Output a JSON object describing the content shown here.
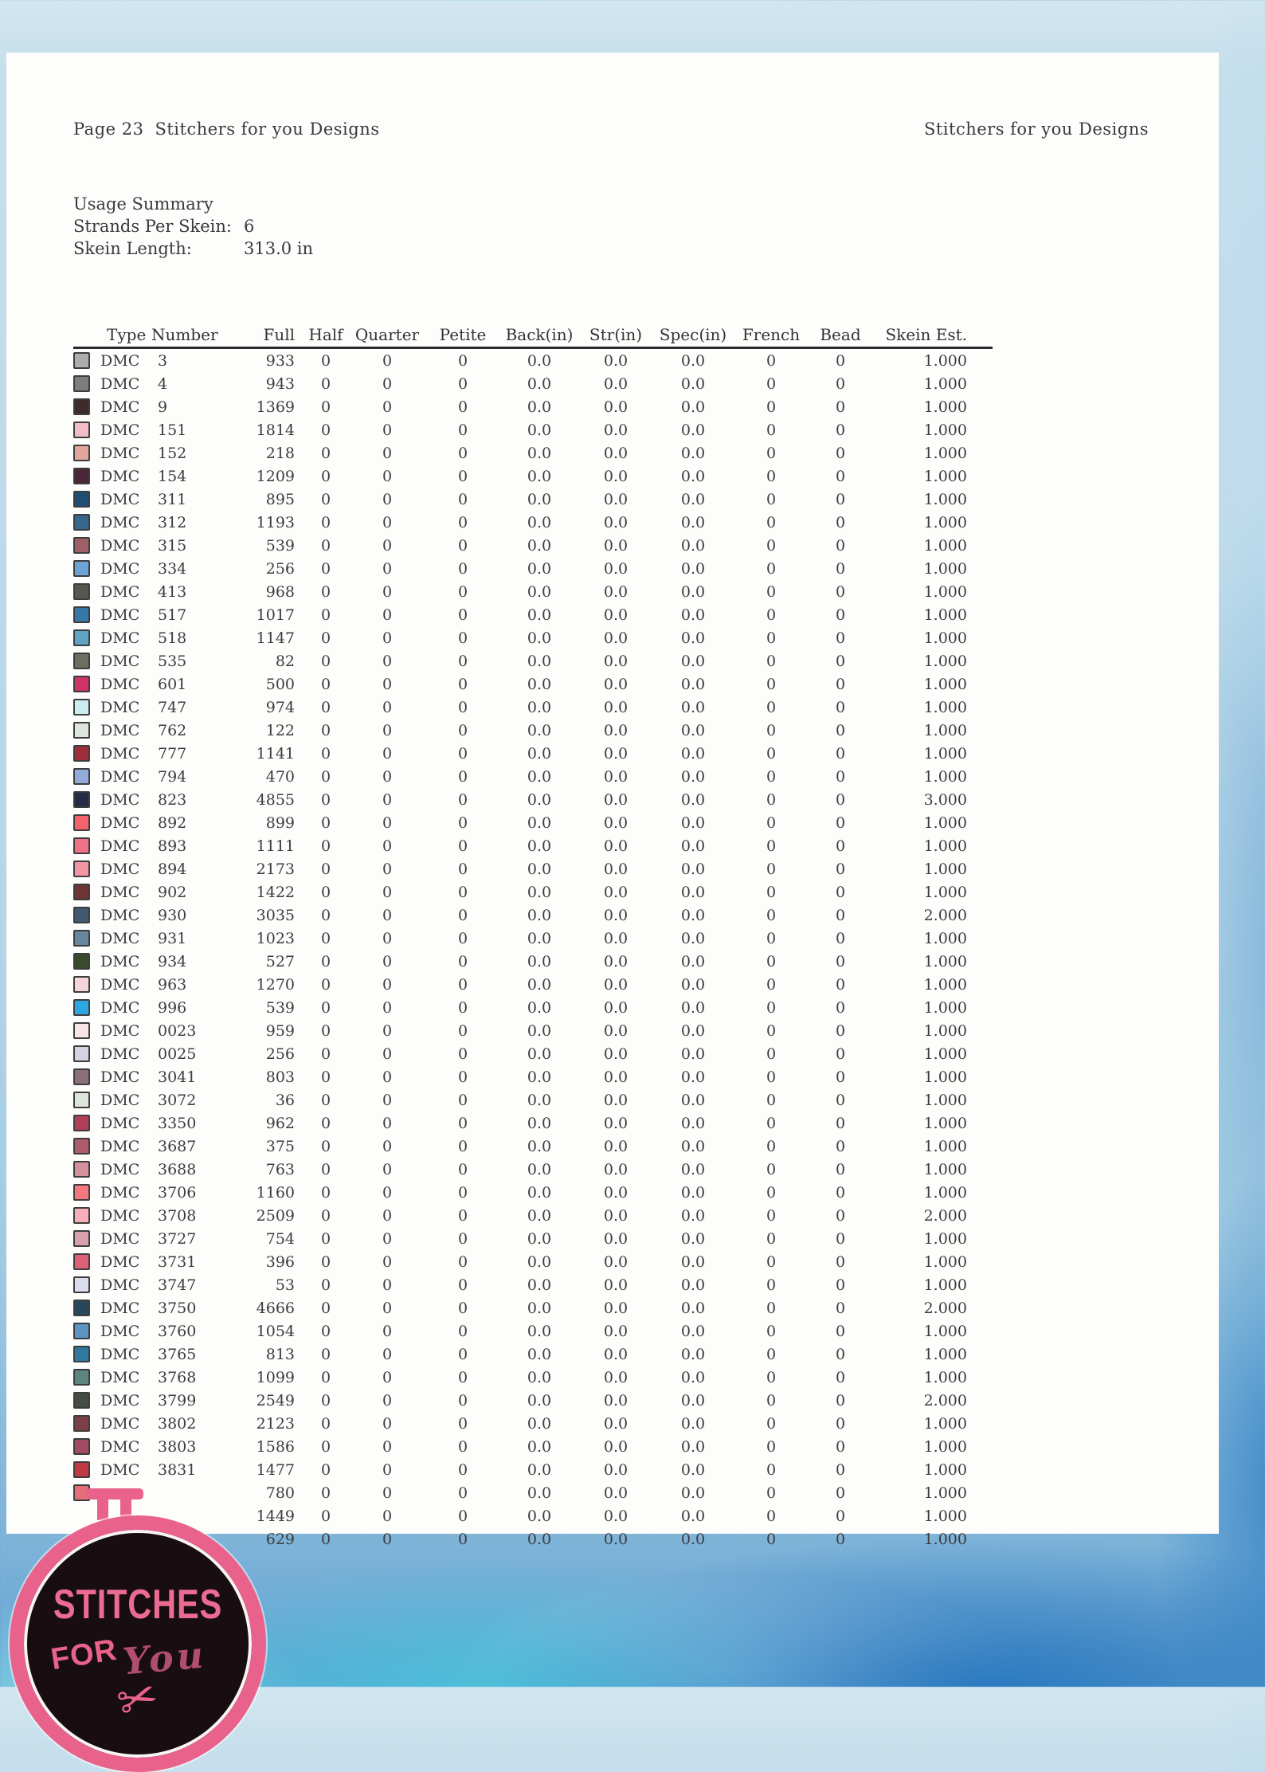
{
  "header": {
    "page_label": "Page 23",
    "doc_title": "Stitchers for you Designs",
    "right_title": "Stitchers for you Designs"
  },
  "summary": {
    "title": "Usage Summary",
    "strands_label": "Strands Per Skein:",
    "strands_value": "6",
    "length_label": "Skein Length:",
    "length_value": "313.0 in"
  },
  "table": {
    "columns": [
      "Type",
      "Number",
      "Full",
      "Half",
      "Quarter",
      "Petite",
      "Back(in)",
      "Str(in)",
      "Spec(in)",
      "French",
      "Bead",
      "Skein Est."
    ],
    "rows": [
      [
        "#ADADAD",
        "DMC",
        "3",
        "933",
        "0",
        "0",
        "0",
        "0.0",
        "0.0",
        "0.0",
        "0",
        "0",
        "1.000"
      ],
      [
        "#7E7E7E",
        "DMC",
        "4",
        "943",
        "0",
        "0",
        "0",
        "0.0",
        "0.0",
        "0.0",
        "0",
        "0",
        "1.000"
      ],
      [
        "#3C2B29",
        "DMC",
        "9",
        "1369",
        "0",
        "0",
        "0",
        "0.0",
        "0.0",
        "0.0",
        "0",
        "0",
        "1.000"
      ],
      [
        "#F3BDC8",
        "DMC",
        "151",
        "1814",
        "0",
        "0",
        "0",
        "0.0",
        "0.0",
        "0.0",
        "0",
        "0",
        "1.000"
      ],
      [
        "#E2A79C",
        "DMC",
        "152",
        "218",
        "0",
        "0",
        "0",
        "0.0",
        "0.0",
        "0.0",
        "0",
        "0",
        "1.000"
      ],
      [
        "#4B2639",
        "DMC",
        "154",
        "1209",
        "0",
        "0",
        "0",
        "0.0",
        "0.0",
        "0.0",
        "0",
        "0",
        "1.000"
      ],
      [
        "#1F4E74",
        "DMC",
        "311",
        "895",
        "0",
        "0",
        "0",
        "0.0",
        "0.0",
        "0.0",
        "0",
        "0",
        "1.000"
      ],
      [
        "#35678F",
        "DMC",
        "312",
        "1193",
        "0",
        "0",
        "0",
        "0.0",
        "0.0",
        "0.0",
        "0",
        "0",
        "1.000"
      ],
      [
        "#9E5F66",
        "DMC",
        "315",
        "539",
        "0",
        "0",
        "0",
        "0.0",
        "0.0",
        "0.0",
        "0",
        "0",
        "1.000"
      ],
      [
        "#6BA4D4",
        "DMC",
        "334",
        "256",
        "0",
        "0",
        "0",
        "0.0",
        "0.0",
        "0.0",
        "0",
        "0",
        "1.000"
      ],
      [
        "#55584F",
        "DMC",
        "413",
        "968",
        "0",
        "0",
        "0",
        "0.0",
        "0.0",
        "0.0",
        "0",
        "0",
        "1.000"
      ],
      [
        "#3679A8",
        "DMC",
        "517",
        "1017",
        "0",
        "0",
        "0",
        "0.0",
        "0.0",
        "0.0",
        "0",
        "0",
        "1.000"
      ],
      [
        "#5FA4C2",
        "DMC",
        "518",
        "1147",
        "0",
        "0",
        "0",
        "0.0",
        "0.0",
        "0.0",
        "0",
        "0",
        "1.000"
      ],
      [
        "#6A6F60",
        "DMC",
        "535",
        "82",
        "0",
        "0",
        "0",
        "0.0",
        "0.0",
        "0.0",
        "0",
        "0",
        "1.000"
      ],
      [
        "#CE3268",
        "DMC",
        "601",
        "500",
        "0",
        "0",
        "0",
        "0.0",
        "0.0",
        "0.0",
        "0",
        "0",
        "1.000"
      ],
      [
        "#CDECEF",
        "DMC",
        "747",
        "974",
        "0",
        "0",
        "0",
        "0.0",
        "0.0",
        "0.0",
        "0",
        "0",
        "1.000"
      ],
      [
        "#DCE5DE",
        "DMC",
        "762",
        "122",
        "0",
        "0",
        "0",
        "0.0",
        "0.0",
        "0.0",
        "0",
        "0",
        "1.000"
      ],
      [
        "#9D2F3D",
        "DMC",
        "777",
        "1141",
        "0",
        "0",
        "0",
        "0.0",
        "0.0",
        "0.0",
        "0",
        "0",
        "1.000"
      ],
      [
        "#93ABD8",
        "DMC",
        "794",
        "470",
        "0",
        "0",
        "0",
        "0.0",
        "0.0",
        "0.0",
        "0",
        "0",
        "1.000"
      ],
      [
        "#252C48",
        "DMC",
        "823",
        "4855",
        "0",
        "0",
        "0",
        "0.0",
        "0.0",
        "0.0",
        "0",
        "0",
        "3.000"
      ],
      [
        "#F4626E",
        "DMC",
        "892",
        "899",
        "0",
        "0",
        "0",
        "0.0",
        "0.0",
        "0.0",
        "0",
        "0",
        "1.000"
      ],
      [
        "#EF7287",
        "DMC",
        "893",
        "1111",
        "0",
        "0",
        "0",
        "0.0",
        "0.0",
        "0.0",
        "0",
        "0",
        "1.000"
      ],
      [
        "#F295A4",
        "DMC",
        "894",
        "2173",
        "0",
        "0",
        "0",
        "0.0",
        "0.0",
        "0.0",
        "0",
        "0",
        "1.000"
      ],
      [
        "#6F3434",
        "DMC",
        "902",
        "1422",
        "0",
        "0",
        "0",
        "0.0",
        "0.0",
        "0.0",
        "0",
        "0",
        "1.000"
      ],
      [
        "#40596E",
        "DMC",
        "930",
        "3035",
        "0",
        "0",
        "0",
        "0.0",
        "0.0",
        "0.0",
        "0",
        "0",
        "2.000"
      ],
      [
        "#68879E",
        "DMC",
        "931",
        "1023",
        "0",
        "0",
        "0",
        "0.0",
        "0.0",
        "0.0",
        "0",
        "0",
        "1.000"
      ],
      [
        "#3A4A2C",
        "DMC",
        "934",
        "527",
        "0",
        "0",
        "0",
        "0.0",
        "0.0",
        "0.0",
        "0",
        "0",
        "1.000"
      ],
      [
        "#F7D4DA",
        "DMC",
        "963",
        "1270",
        "0",
        "0",
        "0",
        "0.0",
        "0.0",
        "0.0",
        "0",
        "0",
        "1.000"
      ],
      [
        "#2BA7E4",
        "DMC",
        "996",
        "539",
        "0",
        "0",
        "0",
        "0.0",
        "0.0",
        "0.0",
        "0",
        "0",
        "1.000"
      ],
      [
        "#F6E4E7",
        "DMC",
        "0023",
        "959",
        "0",
        "0",
        "0",
        "0.0",
        "0.0",
        "0.0",
        "0",
        "0",
        "1.000"
      ],
      [
        "#D5D2E2",
        "DMC",
        "0025",
        "256",
        "0",
        "0",
        "0",
        "0.0",
        "0.0",
        "0.0",
        "0",
        "0",
        "1.000"
      ],
      [
        "#8A7079",
        "DMC",
        "3041",
        "803",
        "0",
        "0",
        "0",
        "0.0",
        "0.0",
        "0.0",
        "0",
        "0",
        "1.000"
      ],
      [
        "#DCE5D9",
        "DMC",
        "3072",
        "36",
        "0",
        "0",
        "0",
        "0.0",
        "0.0",
        "0.0",
        "0",
        "0",
        "1.000"
      ],
      [
        "#B23F58",
        "DMC",
        "3350",
        "962",
        "0",
        "0",
        "0",
        "0.0",
        "0.0",
        "0.0",
        "0",
        "0",
        "1.000"
      ],
      [
        "#AE5B6B",
        "DMC",
        "3687",
        "375",
        "0",
        "0",
        "0",
        "0.0",
        "0.0",
        "0.0",
        "0",
        "0",
        "1.000"
      ],
      [
        "#D5909E",
        "DMC",
        "3688",
        "763",
        "0",
        "0",
        "0",
        "0.0",
        "0.0",
        "0.0",
        "0",
        "0",
        "1.000"
      ],
      [
        "#F6787F",
        "DMC",
        "3706",
        "1160",
        "0",
        "0",
        "0",
        "0.0",
        "0.0",
        "0.0",
        "0",
        "0",
        "1.000"
      ],
      [
        "#F8AFBB",
        "DMC",
        "3708",
        "2509",
        "0",
        "0",
        "0",
        "0.0",
        "0.0",
        "0.0",
        "0",
        "0",
        "2.000"
      ],
      [
        "#D7A0AB",
        "DMC",
        "3727",
        "754",
        "0",
        "0",
        "0",
        "0.0",
        "0.0",
        "0.0",
        "0",
        "0",
        "1.000"
      ],
      [
        "#DE6076",
        "DMC",
        "3731",
        "396",
        "0",
        "0",
        "0",
        "0.0",
        "0.0",
        "0.0",
        "0",
        "0",
        "1.000"
      ],
      [
        "#D9DDEE",
        "DMC",
        "3747",
        "53",
        "0",
        "0",
        "0",
        "0.0",
        "0.0",
        "0.0",
        "0",
        "0",
        "1.000"
      ],
      [
        "#27485C",
        "DMC",
        "3750",
        "4666",
        "0",
        "0",
        "0",
        "0.0",
        "0.0",
        "0.0",
        "0",
        "0",
        "2.000"
      ],
      [
        "#5C95C4",
        "DMC",
        "3760",
        "1054",
        "0",
        "0",
        "0",
        "0.0",
        "0.0",
        "0.0",
        "0",
        "0",
        "1.000"
      ],
      [
        "#2F79A0",
        "DMC",
        "3765",
        "813",
        "0",
        "0",
        "0",
        "0.0",
        "0.0",
        "0.0",
        "0",
        "0",
        "1.000"
      ],
      [
        "#5D8682",
        "DMC",
        "3768",
        "1099",
        "0",
        "0",
        "0",
        "0.0",
        "0.0",
        "0.0",
        "0",
        "0",
        "1.000"
      ],
      [
        "#454C43",
        "DMC",
        "3799",
        "2549",
        "0",
        "0",
        "0",
        "0.0",
        "0.0",
        "0.0",
        "0",
        "0",
        "2.000"
      ],
      [
        "#7A3F47",
        "DMC",
        "3802",
        "2123",
        "0",
        "0",
        "0",
        "0.0",
        "0.0",
        "0.0",
        "0",
        "0",
        "1.000"
      ],
      [
        "#A34A63",
        "DMC",
        "3803",
        "1586",
        "0",
        "0",
        "0",
        "0.0",
        "0.0",
        "0.0",
        "0",
        "0",
        "1.000"
      ],
      [
        "#BF3A44",
        "DMC",
        "3831",
        "1477",
        "0",
        "0",
        "0",
        "0.0",
        "0.0",
        "0.0",
        "0",
        "0",
        "1.000"
      ],
      [
        "#E56E78",
        "",
        "",
        "780",
        "0",
        "0",
        "0",
        "0.0",
        "0.0",
        "0.0",
        "0",
        "0",
        "1.000"
      ],
      [
        null,
        "",
        "",
        "1449",
        "0",
        "0",
        "0",
        "0.0",
        "0.0",
        "0.0",
        "0",
        "0",
        "1.000"
      ],
      [
        null,
        "",
        "",
        "629",
        "0",
        "0",
        "0",
        "0.0",
        "0.0",
        "0.0",
        "0",
        "0",
        "1.000"
      ]
    ]
  },
  "logo": {
    "line1": "STITCHES",
    "line2": "FOR",
    "line3": "You",
    "scissors_glyph": "✂",
    "hoop_color": "#E9628B"
  }
}
